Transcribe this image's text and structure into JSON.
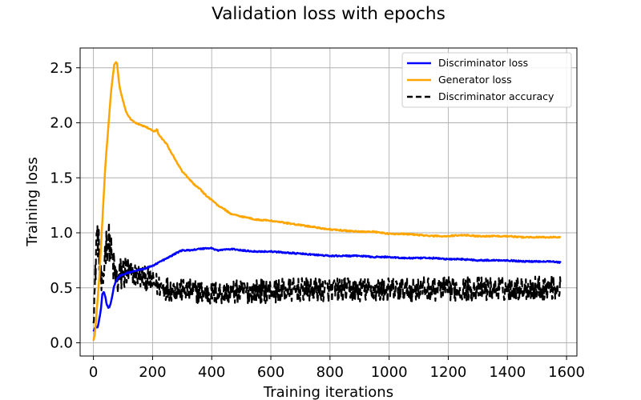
{
  "chart_data": {
    "type": "line",
    "title": "Validation loss with epochs",
    "xlabel": "Training iterations",
    "ylabel": "Training loss",
    "xlim": [
      -45,
      1635
    ],
    "ylim": [
      -0.12,
      2.68
    ],
    "x_ticks": [
      0,
      200,
      400,
      600,
      800,
      1000,
      1200,
      1400,
      1600
    ],
    "y_ticks": [
      0.0,
      0.5,
      1.0,
      1.5,
      2.0,
      2.5
    ],
    "x_tick_labels": [
      "0",
      "200",
      "400",
      "600",
      "800",
      "1000",
      "1200",
      "1400",
      "1600"
    ],
    "y_tick_labels": [
      "0.0",
      "0.5",
      "1.0",
      "1.5",
      "2.0",
      "2.5"
    ],
    "grid": true,
    "legend_position": "top-right",
    "series": [
      {
        "name": "Discriminator loss",
        "color": "#0000ff",
        "style": "solid",
        "points": [
          [
            0,
            0.1
          ],
          [
            5,
            0.14
          ],
          [
            15,
            0.14
          ],
          [
            25,
            0.3
          ],
          [
            30,
            0.44
          ],
          [
            35,
            0.47
          ],
          [
            40,
            0.42
          ],
          [
            45,
            0.35
          ],
          [
            50,
            0.32
          ],
          [
            55,
            0.33
          ],
          [
            60,
            0.38
          ],
          [
            65,
            0.45
          ],
          [
            70,
            0.52
          ],
          [
            80,
            0.58
          ],
          [
            90,
            0.61
          ],
          [
            100,
            0.62
          ],
          [
            120,
            0.64
          ],
          [
            150,
            0.66
          ],
          [
            180,
            0.68
          ],
          [
            200,
            0.7
          ],
          [
            220,
            0.73
          ],
          [
            250,
            0.77
          ],
          [
            270,
            0.8
          ],
          [
            290,
            0.83
          ],
          [
            300,
            0.84
          ],
          [
            320,
            0.84
          ],
          [
            350,
            0.85
          ],
          [
            380,
            0.86
          ],
          [
            400,
            0.86
          ],
          [
            420,
            0.84
          ],
          [
            450,
            0.85
          ],
          [
            480,
            0.85
          ],
          [
            500,
            0.84
          ],
          [
            550,
            0.83
          ],
          [
            600,
            0.83
          ],
          [
            650,
            0.82
          ],
          [
            700,
            0.81
          ],
          [
            750,
            0.8
          ],
          [
            800,
            0.79
          ],
          [
            850,
            0.79
          ],
          [
            900,
            0.79
          ],
          [
            950,
            0.78
          ],
          [
            1000,
            0.78
          ],
          [
            1050,
            0.77
          ],
          [
            1100,
            0.77
          ],
          [
            1150,
            0.77
          ],
          [
            1200,
            0.76
          ],
          [
            1250,
            0.76
          ],
          [
            1300,
            0.75
          ],
          [
            1350,
            0.75
          ],
          [
            1400,
            0.75
          ],
          [
            1450,
            0.74
          ],
          [
            1500,
            0.74
          ],
          [
            1550,
            0.74
          ],
          [
            1580,
            0.73
          ]
        ]
      },
      {
        "name": "Generator loss",
        "color": "#ffa500",
        "style": "solid",
        "points": [
          [
            0,
            0.02
          ],
          [
            5,
            0.08
          ],
          [
            10,
            0.25
          ],
          [
            20,
            0.6
          ],
          [
            30,
            1.1
          ],
          [
            40,
            1.6
          ],
          [
            50,
            1.95
          ],
          [
            60,
            2.3
          ],
          [
            70,
            2.52
          ],
          [
            75,
            2.55
          ],
          [
            80,
            2.54
          ],
          [
            85,
            2.4
          ],
          [
            90,
            2.3
          ],
          [
            100,
            2.2
          ],
          [
            110,
            2.1
          ],
          [
            120,
            2.05
          ],
          [
            140,
            2.0
          ],
          [
            160,
            1.98
          ],
          [
            180,
            1.96
          ],
          [
            200,
            1.93
          ],
          [
            210,
            1.92
          ],
          [
            215,
            1.94
          ],
          [
            220,
            1.9
          ],
          [
            230,
            1.86
          ],
          [
            250,
            1.8
          ],
          [
            260,
            1.74
          ],
          [
            270,
            1.7
          ],
          [
            280,
            1.65
          ],
          [
            300,
            1.56
          ],
          [
            320,
            1.5
          ],
          [
            340,
            1.44
          ],
          [
            360,
            1.4
          ],
          [
            380,
            1.34
          ],
          [
            400,
            1.3
          ],
          [
            420,
            1.25
          ],
          [
            440,
            1.22
          ],
          [
            460,
            1.18
          ],
          [
            480,
            1.16
          ],
          [
            500,
            1.15
          ],
          [
            550,
            1.12
          ],
          [
            600,
            1.11
          ],
          [
            650,
            1.09
          ],
          [
            700,
            1.07
          ],
          [
            750,
            1.05
          ],
          [
            800,
            1.03
          ],
          [
            850,
            1.02
          ],
          [
            900,
            1.01
          ],
          [
            950,
            1.01
          ],
          [
            1000,
            0.99
          ],
          [
            1050,
            0.99
          ],
          [
            1100,
            0.98
          ],
          [
            1150,
            0.97
          ],
          [
            1200,
            0.97
          ],
          [
            1250,
            0.98
          ],
          [
            1300,
            0.97
          ],
          [
            1350,
            0.97
          ],
          [
            1400,
            0.97
          ],
          [
            1450,
            0.96
          ],
          [
            1500,
            0.96
          ],
          [
            1550,
            0.96
          ],
          [
            1580,
            0.96
          ]
        ]
      },
      {
        "name": "Discriminator accuracy",
        "color": "#000000",
        "style": "dashed",
        "noisy": true,
        "points": [
          [
            0,
            0.35
          ],
          [
            5,
            0.45
          ],
          [
            10,
            0.98
          ],
          [
            15,
            0.95
          ],
          [
            20,
            0.8
          ],
          [
            25,
            0.55
          ],
          [
            30,
            0.45
          ],
          [
            40,
            0.85
          ],
          [
            50,
            0.95
          ],
          [
            55,
            0.9
          ],
          [
            60,
            0.8
          ],
          [
            70,
            0.65
          ],
          [
            80,
            0.55
          ],
          [
            90,
            0.6
          ],
          [
            100,
            0.65
          ],
          [
            120,
            0.63
          ],
          [
            140,
            0.62
          ],
          [
            160,
            0.6
          ],
          [
            180,
            0.58
          ],
          [
            200,
            0.55
          ],
          [
            220,
            0.52
          ],
          [
            240,
            0.5
          ],
          [
            260,
            0.49
          ],
          [
            300,
            0.48
          ],
          [
            350,
            0.46
          ],
          [
            400,
            0.45
          ],
          [
            450,
            0.46
          ],
          [
            500,
            0.46
          ],
          [
            550,
            0.47
          ],
          [
            600,
            0.47
          ],
          [
            700,
            0.48
          ],
          [
            800,
            0.48
          ],
          [
            900,
            0.48
          ],
          [
            1000,
            0.48
          ],
          [
            1100,
            0.49
          ],
          [
            1200,
            0.49
          ],
          [
            1300,
            0.49
          ],
          [
            1400,
            0.49
          ],
          [
            1500,
            0.5
          ],
          [
            1580,
            0.5
          ]
        ]
      }
    ]
  }
}
